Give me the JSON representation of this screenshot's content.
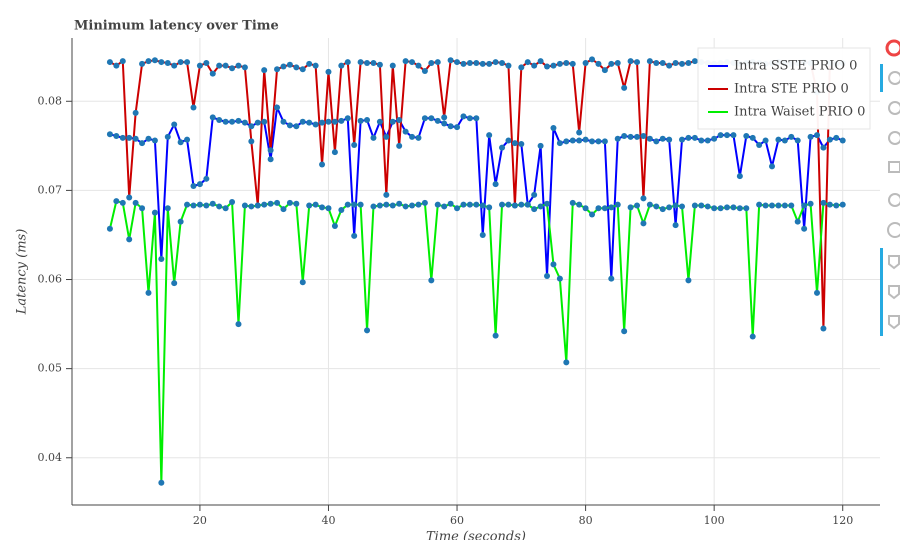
{
  "chart_data": {
    "type": "line",
    "title": "Minimum latency over Time",
    "x_label": "Time (seconds)",
    "y_label": "Latency (ms)",
    "x": [
      6,
      7,
      8,
      9,
      10,
      11,
      12,
      13,
      14,
      15,
      16,
      17,
      18,
      19,
      20,
      21,
      22,
      23,
      24,
      25,
      26,
      27,
      28,
      29,
      30,
      31,
      32,
      33,
      34,
      35,
      36,
      37,
      38,
      39,
      40,
      41,
      42,
      43,
      44,
      45,
      46,
      47,
      48,
      49,
      50,
      51,
      52,
      53,
      54,
      55,
      56,
      57,
      58,
      59,
      60,
      61,
      62,
      63,
      64,
      65,
      66,
      67,
      68,
      69,
      70,
      71,
      72,
      73,
      74,
      75,
      76,
      77,
      78,
      79,
      80,
      81,
      82,
      83,
      84,
      85,
      86,
      87,
      88,
      89,
      90,
      91,
      92,
      93,
      94,
      95,
      96,
      97,
      98,
      99,
      100,
      101,
      102,
      103,
      104,
      105,
      106,
      107,
      108,
      109,
      110,
      111,
      112,
      113,
      114,
      115,
      116,
      117,
      118,
      119,
      120
    ],
    "series": [
      {
        "name": "Intra SSTE PRIO 0",
        "color": "#0000ff",
        "values": [
          0.0763,
          0.0761,
          0.0759,
          0.0759,
          0.0758,
          0.0753,
          0.0758,
          0.0756,
          0.0623,
          0.076,
          0.0774,
          0.0754,
          0.0757,
          0.0705,
          0.0707,
          0.0713,
          0.0782,
          0.0779,
          0.0777,
          0.0777,
          0.0778,
          0.0776,
          0.0772,
          0.0776,
          0.0777,
          0.0735,
          0.0793,
          0.0777,
          0.0773,
          0.0772,
          0.0777,
          0.0776,
          0.0774,
          0.0776,
          0.0777,
          0.0777,
          0.0778,
          0.0781,
          0.0649,
          0.0778,
          0.0779,
          0.0759,
          0.0777,
          0.076,
          0.0777,
          0.0779,
          0.0766,
          0.076,
          0.0759,
          0.0781,
          0.0781,
          0.0778,
          0.0775,
          0.0772,
          0.0771,
          0.0783,
          0.0781,
          0.0781,
          0.065,
          0.0762,
          0.0707,
          0.0748,
          0.0756,
          0.0753,
          0.0752,
          0.0684,
          0.0695,
          0.075,
          0.0604,
          0.077,
          0.0753,
          0.0755,
          0.0756,
          0.0756,
          0.0757,
          0.0755,
          0.0755,
          0.0755,
          0.0601,
          0.0758,
          0.0761,
          0.076,
          0.076,
          0.0761,
          0.0758,
          0.0755,
          0.0758,
          0.0757,
          0.0661,
          0.0757,
          0.0759,
          0.0759,
          0.0756,
          0.0756,
          0.0758,
          0.0762,
          0.0762,
          0.0762,
          0.0716,
          0.0761,
          0.0759,
          0.0751,
          0.0756,
          0.0727,
          0.0757,
          0.0756,
          0.076,
          0.0756,
          0.0657,
          0.076,
          0.0762,
          0.0748,
          0.0757,
          0.0759,
          0.0756
        ]
      },
      {
        "name": "Intra STE PRIO 0",
        "color": "#cc0000",
        "values": [
          0.0844,
          0.084,
          0.0845,
          0.0692,
          0.0787,
          0.0842,
          0.0845,
          0.0846,
          0.0844,
          0.0843,
          0.084,
          0.0844,
          0.0844,
          0.0793,
          0.084,
          0.0843,
          0.0831,
          0.084,
          0.084,
          0.0837,
          0.084,
          0.0838,
          0.0755,
          0.0683,
          0.0835,
          0.0745,
          0.0836,
          0.0839,
          0.0841,
          0.0838,
          0.0836,
          0.0842,
          0.084,
          0.0729,
          0.0833,
          0.0743,
          0.084,
          0.0844,
          0.0751,
          0.0844,
          0.0843,
          0.0843,
          0.0841,
          0.0695,
          0.084,
          0.075,
          0.0845,
          0.0844,
          0.084,
          0.0834,
          0.0843,
          0.0844,
          0.0782,
          0.0846,
          0.0844,
          0.0842,
          0.0843,
          0.0843,
          0.0842,
          0.0842,
          0.0844,
          0.0843,
          0.084,
          0.0683,
          0.0838,
          0.0844,
          0.084,
          0.0845,
          0.0839,
          0.084,
          0.0842,
          0.0843,
          0.0842,
          0.0765,
          0.0843,
          0.0847,
          0.0842,
          0.0835,
          0.0842,
          0.0843,
          0.0815,
          0.0845,
          0.0844,
          0.0691,
          0.0845,
          0.0843,
          0.0843,
          0.084,
          0.0843,
          0.0842,
          0.0843,
          0.0845,
          0.0844,
          0.0843,
          0.0842,
          0.0843,
          0.0844,
          0.0843,
          0.0842,
          0.0843,
          0.0844,
          0.0843,
          0.0842,
          0.0843,
          0.0844,
          0.0843,
          0.0842,
          0.0843,
          0.0844,
          0.0843,
          0.081,
          0.0545,
          0.0843,
          0.0842,
          0.0843
        ]
      },
      {
        "name": "Intra Waiset PRIO 0",
        "color": "#00ee00",
        "values": [
          0.0657,
          0.0688,
          0.0686,
          0.0645,
          0.0686,
          0.068,
          0.0585,
          0.0675,
          0.0372,
          0.068,
          0.0596,
          0.0665,
          0.0684,
          0.0683,
          0.0684,
          0.0683,
          0.0685,
          0.0682,
          0.068,
          0.0687,
          0.055,
          0.0683,
          0.0682,
          0.0683,
          0.0684,
          0.0685,
          0.0686,
          0.0679,
          0.0686,
          0.0685,
          0.0597,
          0.0683,
          0.0684,
          0.0681,
          0.068,
          0.066,
          0.0678,
          0.0684,
          0.0684,
          0.0684,
          0.0543,
          0.0682,
          0.0683,
          0.0684,
          0.0683,
          0.0685,
          0.0682,
          0.0683,
          0.0684,
          0.0686,
          0.0599,
          0.0684,
          0.0682,
          0.0685,
          0.068,
          0.0684,
          0.0684,
          0.0684,
          0.0683,
          0.0681,
          0.0537,
          0.0684,
          0.0684,
          0.0683,
          0.0684,
          0.0684,
          0.0679,
          0.0682,
          0.0685,
          0.0617,
          0.0601,
          0.0507,
          0.0686,
          0.0684,
          0.068,
          0.0673,
          0.068,
          0.068,
          0.0681,
          0.0684,
          0.0542,
          0.0681,
          0.0683,
          0.0663,
          0.0684,
          0.0682,
          0.0679,
          0.0681,
          0.0683,
          0.0682,
          0.0599,
          0.0683,
          0.0683,
          0.0682,
          0.068,
          0.068,
          0.0681,
          0.0681,
          0.068,
          0.068,
          0.0536,
          0.0684,
          0.0683,
          0.0683,
          0.0683,
          0.0683,
          0.0683,
          0.0665,
          0.0683,
          0.0685,
          0.0585,
          0.0686,
          0.0684,
          0.0683,
          0.0684
        ]
      }
    ],
    "marker_color": "#1f77b4",
    "xlim": [
      0.1,
      125.8
    ],
    "ylim": [
      0.0347,
      0.0871
    ],
    "xticks": [
      20,
      40,
      60,
      80,
      100,
      120
    ],
    "yticks": [
      0.04,
      0.05,
      0.06,
      0.07,
      0.08
    ],
    "grid": true,
    "legend": "top-right"
  }
}
